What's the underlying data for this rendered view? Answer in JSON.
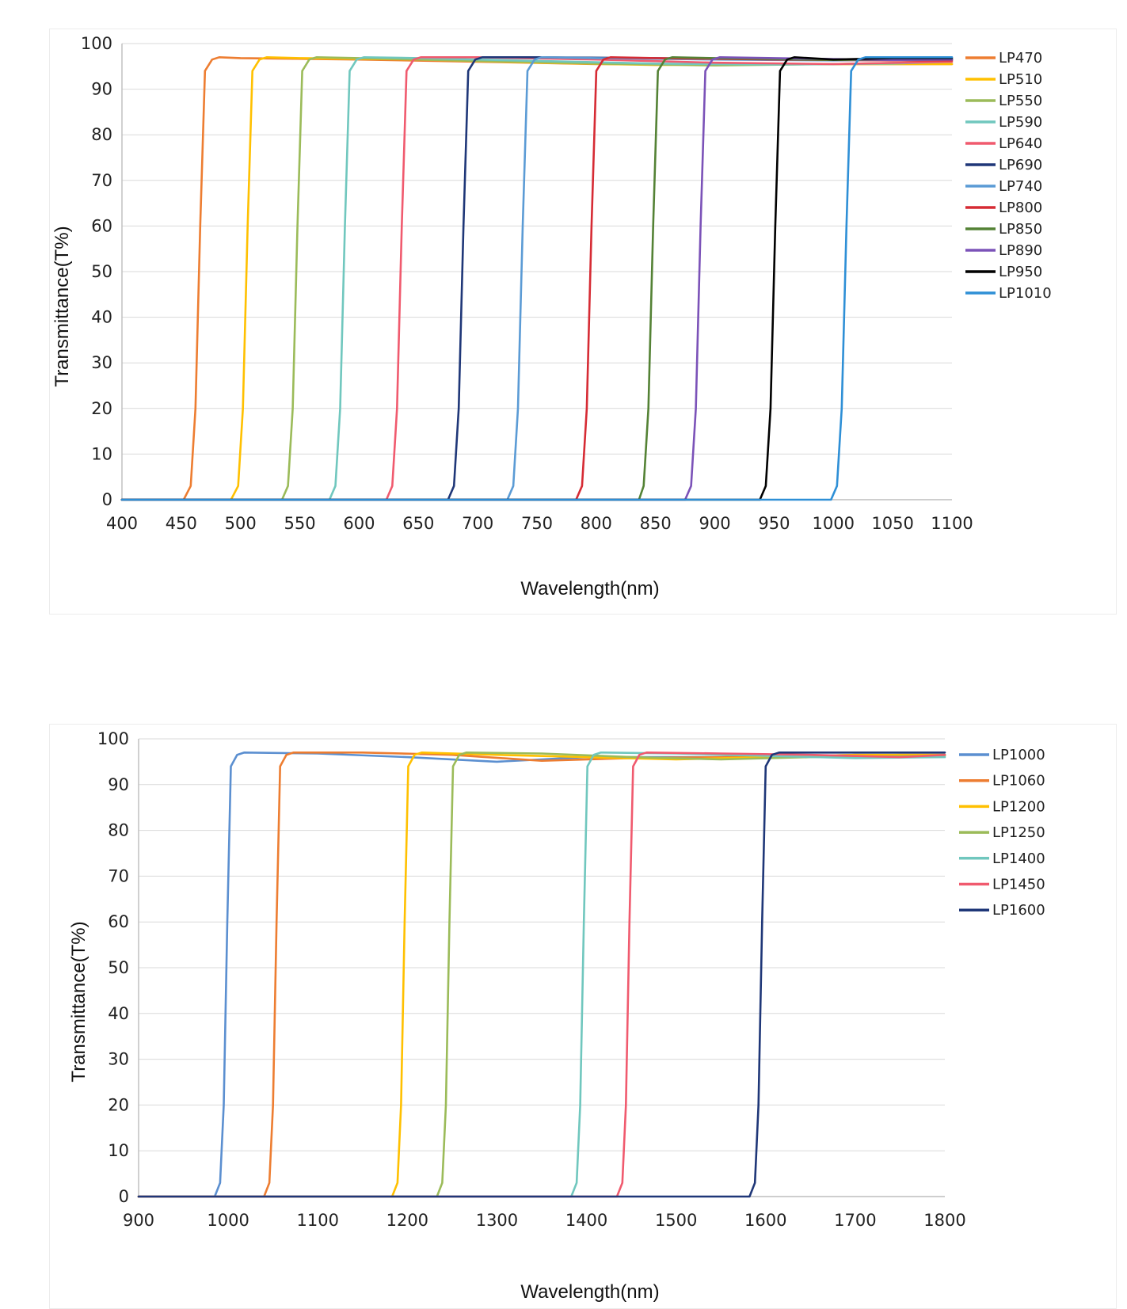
{
  "chart_data": [
    {
      "type": "line",
      "title": "",
      "xlabel": "Wavelength(nm)",
      "ylabel": "Transmittance(T%)",
      "xlim": [
        400,
        1100
      ],
      "ylim": [
        0,
        100
      ],
      "xticks": [
        400,
        450,
        500,
        550,
        600,
        650,
        700,
        750,
        800,
        850,
        900,
        950,
        1000,
        1050,
        1100
      ],
      "yticks": [
        0,
        10,
        20,
        30,
        40,
        50,
        60,
        70,
        80,
        90,
        100
      ],
      "grid": "horizontal",
      "legend_position": "right",
      "series": [
        {
          "name": "LP470",
          "color": "#ed7d31",
          "x": [
            400,
            452,
            458,
            462,
            466,
            470,
            476,
            482,
            500,
            600,
            700,
            800,
            900,
            1000,
            1100
          ],
          "values": [
            0,
            0,
            3,
            20,
            60,
            94,
            96.5,
            97,
            96.8,
            96.5,
            96,
            95.5,
            95.5,
            95.5,
            95.5
          ]
        },
        {
          "name": "LP510",
          "color": "#ffc000",
          "x": [
            400,
            492,
            498,
            502,
            506,
            510,
            516,
            522,
            550,
            650,
            750,
            850,
            950,
            1050,
            1100
          ],
          "values": [
            0,
            0,
            3,
            20,
            60,
            94,
            96.5,
            97,
            96.8,
            96.5,
            95.8,
            95.3,
            95.5,
            95.5,
            95.5
          ]
        },
        {
          "name": "LP550",
          "color": "#9bbb59",
          "x": [
            400,
            535,
            540,
            544,
            548,
            552,
            558,
            564,
            600,
            700,
            800,
            900,
            1000,
            1100
          ],
          "values": [
            0,
            0,
            3,
            20,
            60,
            94,
            96.5,
            97,
            96.8,
            96.2,
            95.6,
            95.2,
            95.5,
            96
          ]
        },
        {
          "name": "LP590",
          "color": "#70c7be",
          "x": [
            400,
            575,
            580,
            584,
            588,
            592,
            598,
            604,
            650,
            750,
            850,
            950,
            1050,
            1100
          ],
          "values": [
            0,
            0,
            3,
            20,
            60,
            94,
            96.5,
            97,
            96.8,
            96.2,
            95.6,
            95.4,
            95.6,
            96
          ]
        },
        {
          "name": "LP640",
          "color": "#f05a6e",
          "x": [
            400,
            623,
            628,
            632,
            636,
            640,
            646,
            652,
            700,
            800,
            900,
            1000,
            1100
          ],
          "values": [
            0,
            0,
            3,
            20,
            60,
            94,
            96.5,
            97,
            97,
            96.5,
            95.8,
            95.5,
            96
          ]
        },
        {
          "name": "LP690",
          "color": "#1f3778",
          "x": [
            400,
            675,
            680,
            684,
            688,
            692,
            698,
            704,
            750,
            850,
            950,
            1050,
            1100
          ],
          "values": [
            0,
            0,
            3,
            20,
            60,
            94,
            96.5,
            97,
            97,
            96.8,
            96.5,
            96.5,
            96.5
          ]
        },
        {
          "name": "LP740",
          "color": "#5b9bd5",
          "x": [
            400,
            725,
            730,
            734,
            738,
            742,
            748,
            754,
            800,
            900,
            1000,
            1100
          ],
          "values": [
            0,
            0,
            3,
            20,
            60,
            94,
            96.5,
            97,
            96.8,
            96.5,
            96.3,
            96.5
          ]
        },
        {
          "name": "LP800",
          "color": "#d62b34",
          "x": [
            400,
            783,
            788,
            792,
            796,
            800,
            806,
            812,
            850,
            950,
            1050,
            1100
          ],
          "values": [
            0,
            0,
            3,
            20,
            60,
            94,
            96.5,
            97,
            96.8,
            96.5,
            96.3,
            96.3
          ]
        },
        {
          "name": "LP850",
          "color": "#548235",
          "x": [
            400,
            836,
            840,
            844,
            848,
            852,
            858,
            864,
            900,
            1000,
            1100
          ],
          "values": [
            0,
            0,
            3,
            20,
            60,
            94,
            96.5,
            97,
            96.8,
            96.4,
            96.5
          ]
        },
        {
          "name": "LP890",
          "color": "#7b52b8",
          "x": [
            400,
            875,
            880,
            884,
            888,
            892,
            898,
            904,
            950,
            1050,
            1100
          ],
          "values": [
            0,
            0,
            3,
            20,
            60,
            94,
            96.5,
            97,
            96.8,
            96.4,
            96.5
          ]
        },
        {
          "name": "LP950",
          "color": "#000000",
          "x": [
            400,
            938,
            943,
            947,
            951,
            955,
            961,
            967,
            1000,
            1050,
            1100
          ],
          "values": [
            0,
            0,
            3,
            20,
            60,
            94,
            96.5,
            97,
            96.5,
            96.8,
            96.8
          ]
        },
        {
          "name": "LP1010",
          "color": "#2e8fd6",
          "x": [
            400,
            998,
            1003,
            1007,
            1011,
            1015,
            1021,
            1027,
            1060,
            1100
          ],
          "values": [
            0,
            0,
            3,
            20,
            60,
            94,
            96.5,
            97,
            97,
            97
          ]
        }
      ]
    },
    {
      "type": "line",
      "title": "",
      "xlabel": "Wavelength(nm)",
      "ylabel": "Transmittance(T%)",
      "xlim": [
        900,
        1800
      ],
      "ylim": [
        0,
        100
      ],
      "xticks": [
        900,
        1000,
        1100,
        1200,
        1300,
        1400,
        1500,
        1600,
        1700,
        1800
      ],
      "yticks": [
        0,
        10,
        20,
        30,
        40,
        50,
        60,
        70,
        80,
        90,
        100
      ],
      "grid": "horizontal",
      "legend_position": "right",
      "series": [
        {
          "name": "LP1000",
          "color": "#5b8fd0",
          "x": [
            900,
            985,
            991,
            995,
            999,
            1003,
            1010,
            1018,
            1100,
            1200,
            1300,
            1400,
            1500,
            1600,
            1700,
            1800
          ],
          "values": [
            0,
            0,
            3,
            20,
            60,
            94,
            96.5,
            97,
            96.8,
            96,
            95,
            96,
            96,
            96,
            96.5,
            96.5
          ]
        },
        {
          "name": "LP1060",
          "color": "#ed7d31",
          "x": [
            900,
            1040,
            1046,
            1050,
            1054,
            1058,
            1065,
            1073,
            1150,
            1250,
            1350,
            1450,
            1550,
            1650,
            1750,
            1800
          ],
          "values": [
            0,
            0,
            3,
            20,
            60,
            94,
            96.5,
            97,
            97,
            96.5,
            95.2,
            95.8,
            96,
            96.2,
            96.5,
            96.5
          ]
        },
        {
          "name": "LP1200",
          "color": "#ffc000",
          "x": [
            900,
            1183,
            1189,
            1193,
            1197,
            1201,
            1208,
            1216,
            1300,
            1400,
            1500,
            1600,
            1700,
            1800
          ],
          "values": [
            0,
            0,
            3,
            20,
            60,
            94,
            96.5,
            97,
            96.5,
            96,
            95.5,
            96,
            96.5,
            96.5
          ]
        },
        {
          "name": "LP1250",
          "color": "#9bbb59",
          "x": [
            900,
            1233,
            1239,
            1243,
            1247,
            1251,
            1258,
            1266,
            1350,
            1450,
            1550,
            1650,
            1750,
            1800
          ],
          "values": [
            0,
            0,
            3,
            20,
            60,
            94,
            96.5,
            97,
            96.8,
            96,
            95.5,
            96,
            96.2,
            96.3
          ]
        },
        {
          "name": "LP1400",
          "color": "#70c7be",
          "x": [
            900,
            1383,
            1389,
            1393,
            1397,
            1401,
            1408,
            1416,
            1500,
            1600,
            1700,
            1800
          ],
          "values": [
            0,
            0,
            3,
            20,
            60,
            94,
            96.5,
            97,
            96.8,
            96.3,
            95.8,
            96
          ]
        },
        {
          "name": "LP1450",
          "color": "#f05a6e",
          "x": [
            900,
            1434,
            1440,
            1444,
            1448,
            1452,
            1459,
            1467,
            1550,
            1650,
            1750,
            1800
          ],
          "values": [
            0,
            0,
            3,
            20,
            60,
            94,
            96.5,
            97,
            96.8,
            96.5,
            96,
            96.5
          ]
        },
        {
          "name": "LP1600",
          "color": "#1f3778",
          "x": [
            900,
            1582,
            1588,
            1592,
            1596,
            1600,
            1607,
            1615,
            1700,
            1800
          ],
          "values": [
            0,
            0,
            3,
            20,
            60,
            94,
            96.5,
            97,
            97,
            97
          ]
        }
      ]
    }
  ]
}
